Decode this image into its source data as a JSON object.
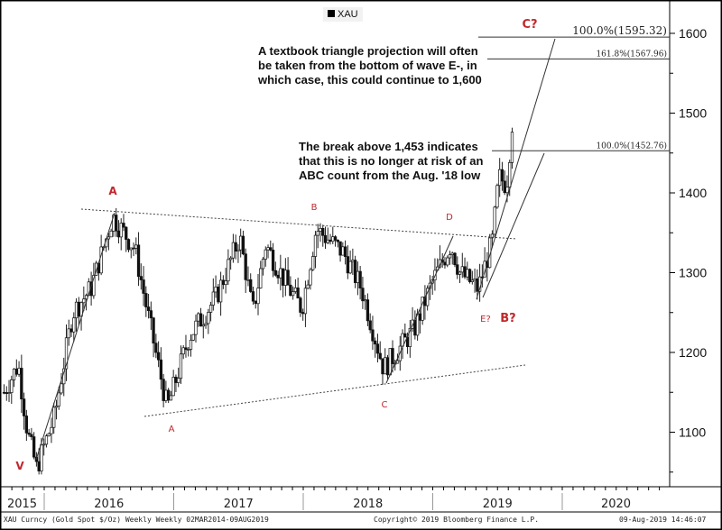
{
  "chart_data": {
    "type": "candlestick",
    "series_name": "XAU",
    "legend": "XAU",
    "legend_placement": "top-center",
    "y_axis": {
      "ticks": [
        1100,
        1200,
        1300,
        1400,
        1500,
        1600
      ],
      "range": [
        1040,
        1640
      ],
      "side": "right"
    },
    "x_axis": {
      "ticks": [
        "2015",
        "2016",
        "2017",
        "2018",
        "2019",
        "2020"
      ]
    },
    "price_path_weekly_approx": [
      [
        2015.69,
        1150
      ],
      [
        2015.8,
        1185
      ],
      [
        2015.87,
        1100
      ],
      [
        2015.94,
        1055
      ],
      [
        2016.08,
        1120
      ],
      [
        2016.22,
        1250
      ],
      [
        2016.36,
        1280
      ],
      [
        2016.53,
        1370
      ],
      [
        2016.7,
        1330
      ],
      [
        2016.81,
        1240
      ],
      [
        2016.95,
        1130
      ],
      [
        2017.12,
        1220
      ],
      [
        2017.33,
        1270
      ],
      [
        2017.51,
        1345
      ],
      [
        2017.61,
        1250
      ],
      [
        2017.71,
        1335
      ],
      [
        2017.89,
        1280
      ],
      [
        2017.99,
        1255
      ],
      [
        2018.1,
        1355
      ],
      [
        2018.31,
        1325
      ],
      [
        2018.45,
        1280
      ],
      [
        2018.62,
        1180
      ],
      [
        2018.72,
        1200
      ],
      [
        2018.86,
        1230
      ],
      [
        2019.0,
        1290
      ],
      [
        2019.14,
        1335
      ],
      [
        2019.21,
        1300
      ],
      [
        2019.35,
        1280
      ],
      [
        2019.46,
        1340
      ],
      [
        2019.51,
        1420
      ],
      [
        2019.57,
        1410
      ],
      [
        2019.62,
        1500
      ]
    ],
    "fib_levels": [
      {
        "label": "100.0%(1595.32)",
        "value": 1595.32
      },
      {
        "label": "161.8%(1567.96)",
        "value": 1567.96
      },
      {
        "label": "100.0%(1452.76)",
        "value": 1452.76
      }
    ],
    "wave_labels": [
      {
        "text": "V",
        "color": "#c0282d",
        "bold": true
      },
      {
        "text": "A",
        "color": "#c0282d",
        "bold": true
      },
      {
        "text": "A",
        "color": "#c0282d",
        "bold": false
      },
      {
        "text": "B",
        "color": "#c0282d",
        "bold": false
      },
      {
        "text": "C",
        "color": "#c0282d",
        "bold": false
      },
      {
        "text": "D",
        "color": "#c0282d",
        "bold": false
      },
      {
        "text": "E?",
        "color": "#c0282d",
        "bold": false
      },
      {
        "text": "B?",
        "color": "#c0282d",
        "bold": true
      },
      {
        "text": "C?",
        "color": "#c0282d",
        "bold": true
      }
    ],
    "annotations": [
      "A textbook triangle projection will often be taken from the bottom of wave E-, in which case, this could continue to 1,600",
      "The break above 1,453 indicates that this is no longer at risk of an ABC count from the Aug. '18 low"
    ]
  },
  "footer": {
    "left": "XAU Curncy (Gold Spot  $/Oz) Weekly  Weekly 02MAR2014-09AUG2019",
    "center": "Copyright© 2019 Bloomberg Finance L.P.",
    "right": "09-Aug-2019 14:46:07"
  }
}
